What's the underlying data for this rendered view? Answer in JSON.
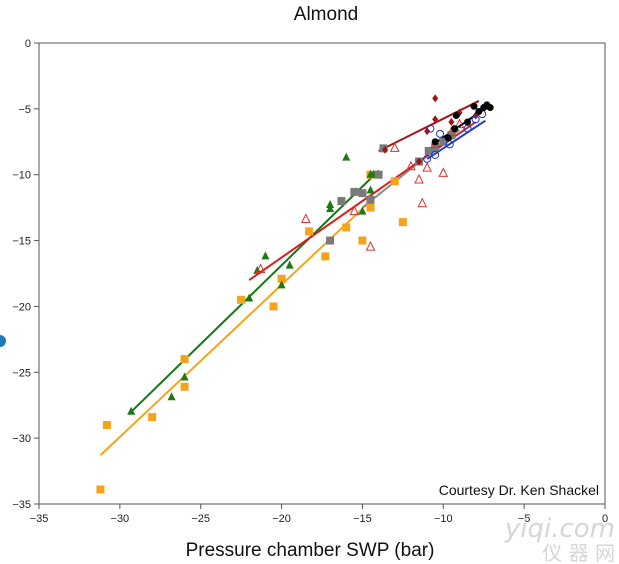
{
  "chart_data": {
    "type": "scatter",
    "title": "Almond",
    "xlabel": "Pressure chamber SWP (bar)",
    "ylabel": "",
    "xlim": [
      -35,
      0
    ],
    "ylim": [
      -35,
      0
    ],
    "x_ticks": [
      -35,
      -30,
      -25,
      -20,
      -15,
      -10,
      -5,
      0
    ],
    "y_ticks": [
      -35,
      -30,
      -25,
      -20,
      -15,
      -10,
      -5
    ],
    "x_tick_labels": [
      "−35",
      "−30",
      "−25",
      "−20",
      "−15",
      "−10",
      "−5",
      "0"
    ],
    "y_tick_labels": [
      "−35",
      "−30",
      "−25",
      "−20",
      "−15",
      "−10",
      "−5"
    ],
    "annotation": "Courtesy Dr. Ken Shackel",
    "grid": false,
    "series": [
      {
        "color": "#f5a41a",
        "marker": "square",
        "points": [
          [
            -31.2,
            -33.9
          ],
          [
            -30.8,
            -29.0
          ],
          [
            -28.0,
            -28.4
          ],
          [
            -26.0,
            -24.0
          ],
          [
            -26.0,
            -26.1
          ],
          [
            -22.5,
            -19.5
          ],
          [
            -20.5,
            -20.0
          ],
          [
            -20.0,
            -17.9
          ],
          [
            -18.3,
            -14.3
          ],
          [
            -17.3,
            -16.2
          ],
          [
            -16.0,
            -14.0
          ],
          [
            -15.0,
            -15.0
          ],
          [
            -14.5,
            -12.5
          ],
          [
            -12.5,
            -13.6
          ],
          [
            -14.5,
            -10.0
          ],
          [
            -13.0,
            -10.5
          ]
        ],
        "fit": [
          [
            -31.2,
            -31.3
          ],
          [
            -14.5,
            -12.0
          ]
        ],
        "fit_color": "#f5a41a"
      },
      {
        "color": "#1e7a10",
        "marker": "triangle",
        "points": [
          [
            -29.3,
            -28.0
          ],
          [
            -26.8,
            -26.9
          ],
          [
            -26.0,
            -25.4
          ],
          [
            -22.0,
            -19.4
          ],
          [
            -21.5,
            -17.3
          ],
          [
            -21.0,
            -16.2
          ],
          [
            -20.0,
            -18.4
          ],
          [
            -19.5,
            -16.9
          ],
          [
            -17.0,
            -12.3
          ],
          [
            -17.0,
            -12.6
          ],
          [
            -16.0,
            -8.7
          ],
          [
            -15.0,
            -12.8
          ],
          [
            -14.5,
            -10.0
          ],
          [
            -14.5,
            -11.2
          ],
          [
            -14.3,
            -10.0
          ],
          [
            -14.0,
            -10.0
          ]
        ],
        "fit": [
          [
            -29.3,
            -28.0
          ],
          [
            -14.0,
            -9.7
          ]
        ],
        "fit_color": "#127a12"
      },
      {
        "color": "#7a7a7a",
        "marker": "square",
        "points": [
          [
            -17.0,
            -15.0
          ],
          [
            -16.3,
            -12.0
          ],
          [
            -15.5,
            -11.3
          ],
          [
            -15.0,
            -11.4
          ],
          [
            -14.5,
            -11.9
          ],
          [
            -14.0,
            -10.0
          ],
          [
            -13.7,
            -8.0
          ],
          [
            -11.5,
            -9.0
          ],
          [
            -10.9,
            -8.2
          ],
          [
            -10.5,
            -7.9
          ],
          [
            -10.0,
            -7.5
          ],
          [
            -9.5,
            -7.0
          ]
        ],
        "fit": [
          [
            -15.0,
            -12.5
          ],
          [
            -9.0,
            -6.6
          ]
        ],
        "fit_color": "#8a8a8a"
      },
      {
        "color": "#e03030",
        "marker": "triangle-open",
        "points": [
          [
            -21.3,
            -17.2
          ],
          [
            -18.5,
            -13.4
          ],
          [
            -15.5,
            -12.8
          ],
          [
            -14.5,
            -15.5
          ],
          [
            -13.0,
            -8.0
          ],
          [
            -12.0,
            -9.4
          ],
          [
            -11.5,
            -10.4
          ],
          [
            -11.3,
            -12.2
          ],
          [
            -11.0,
            -9.5
          ],
          [
            -10.5,
            -7.7
          ],
          [
            -10.0,
            -9.9
          ],
          [
            -9.5,
            -6.8
          ],
          [
            -9.0,
            -6.2
          ]
        ],
        "fit": [
          [
            -22.0,
            -18.0
          ],
          [
            -8.0,
            -6.0
          ]
        ],
        "fit_color": "#d81f1f"
      },
      {
        "color": "#a01515",
        "marker": "diamond",
        "points": [
          [
            -13.6,
            -8.1
          ],
          [
            -11.5,
            -9.0
          ],
          [
            -11.0,
            -6.7
          ],
          [
            -10.5,
            -5.8
          ],
          [
            -10.5,
            -4.2
          ],
          [
            -9.5,
            -6.0
          ],
          [
            -9.0,
            -5.3
          ],
          [
            -8.0,
            -5.5
          ]
        ],
        "fit": [
          [
            -14.0,
            -8.2
          ],
          [
            -7.8,
            -4.4
          ]
        ],
        "fit_color": "#a01515"
      },
      {
        "color": "#2233cc",
        "marker": "circle-open",
        "points": [
          [
            -11.0,
            -8.8
          ],
          [
            -10.5,
            -8.5
          ],
          [
            -10.8,
            -6.5
          ],
          [
            -10.2,
            -6.9
          ],
          [
            -9.6,
            -7.7
          ],
          [
            -8.5,
            -6.5
          ],
          [
            -8.0,
            -5.8
          ],
          [
            -7.6,
            -5.4
          ]
        ],
        "fit": [
          [
            -11.0,
            -8.8
          ],
          [
            -7.4,
            -5.9
          ]
        ],
        "fit_color": "#1a3fd6"
      },
      {
        "color": "#000000",
        "marker": "circle",
        "points": [
          [
            -10.5,
            -7.5
          ],
          [
            -9.7,
            -7.2
          ],
          [
            -9.3,
            -6.5
          ],
          [
            -9.2,
            -5.5
          ],
          [
            -8.5,
            -6.0
          ],
          [
            -8.1,
            -4.8
          ],
          [
            -7.8,
            -5.2
          ],
          [
            -7.5,
            -4.9
          ],
          [
            -7.3,
            -4.7
          ],
          [
            -7.1,
            -4.9
          ]
        ],
        "fit": [
          [
            -10.5,
            -7.6
          ],
          [
            -7.1,
            -4.7
          ]
        ],
        "fit_color": "#000000"
      }
    ]
  },
  "watermark": {
    "top": "yiqi.com",
    "bottom": "仪 器 网"
  }
}
